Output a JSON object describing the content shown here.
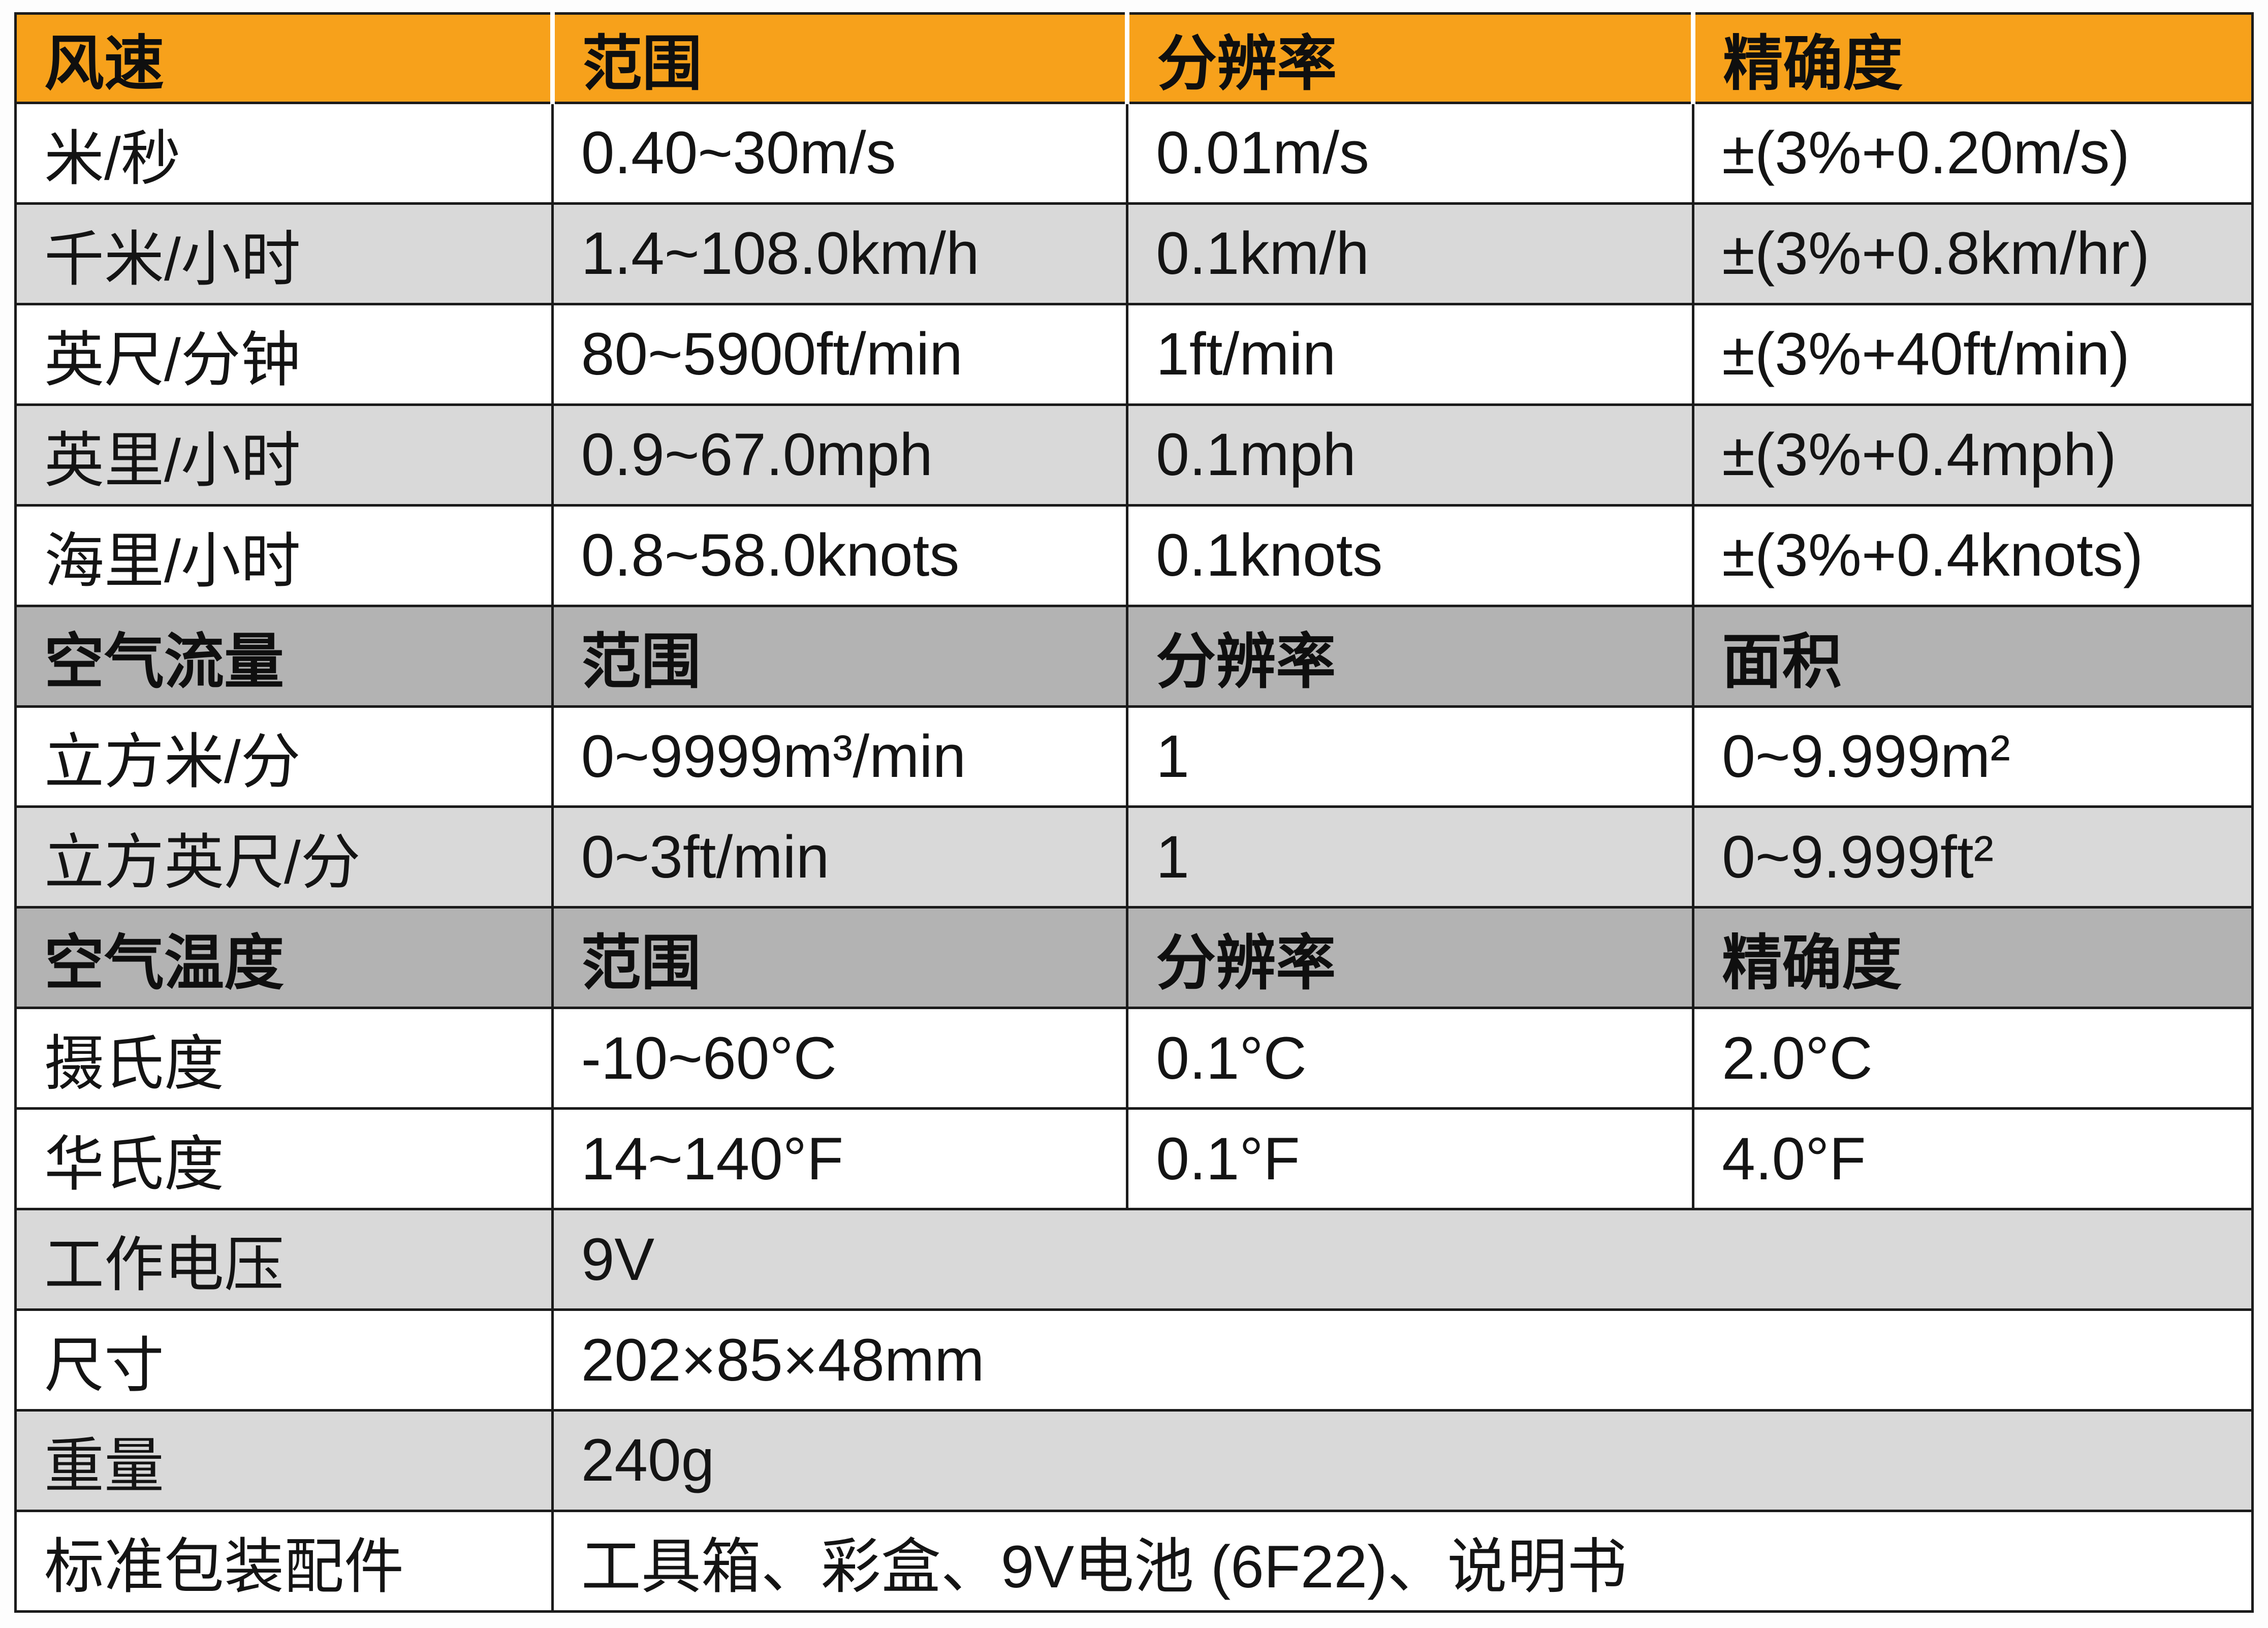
{
  "colors": {
    "header_orange": "#F7A11B",
    "row_white": "#ffffff",
    "row_gray": "#d9d9d9",
    "section_gray": "#b3b3b3",
    "border": "#1b1b1b",
    "text": "#141414"
  },
  "table": {
    "header": [
      "风速",
      "范围",
      "分辨率",
      "精确度"
    ],
    "wind_rows": [
      [
        "米/秒",
        "0.40~30m/s",
        "0.01m/s",
        "±(3%+0.20m/s)"
      ],
      [
        "千米/小时",
        "1.4~108.0km/h",
        "0.1km/h",
        "±(3%+0.8km/hr)"
      ],
      [
        "英尺/分钟",
        "80~5900ft/min",
        "1ft/min",
        "±(3%+40ft/min)"
      ],
      [
        "英里/小时",
        "0.9~67.0mph",
        "0.1mph",
        "±(3%+0.4mph)"
      ],
      [
        "海里/小时",
        "0.8~58.0knots",
        "0.1knots",
        "±(3%+0.4knots)"
      ]
    ],
    "airflow_header": [
      "空气流量",
      "范围",
      "分辨率",
      "面积"
    ],
    "airflow_rows": [
      [
        "立方米/分",
        "0~9999m³/min",
        "1",
        "0~9.999m²"
      ],
      [
        "立方英尺/分",
        "0~3ft/min",
        "1",
        "0~9.999ft²"
      ]
    ],
    "airtemp_header": [
      "空气温度",
      "范围",
      "分辨率",
      "精确度"
    ],
    "airtemp_rows": [
      [
        "摄氏度",
        "-10~60°C",
        "0.1°C",
        "2.0°C"
      ],
      [
        "华氏度",
        "14~140°F",
        "0.1°F",
        "4.0°F"
      ]
    ],
    "info_rows": [
      [
        "工作电压",
        "9V"
      ],
      [
        "尺寸",
        "202×85×48mm"
      ],
      [
        "重量",
        "240g"
      ],
      [
        "标准包装配件",
        "工具箱、彩盒、9V电池 (6F22)、说明书"
      ]
    ]
  }
}
